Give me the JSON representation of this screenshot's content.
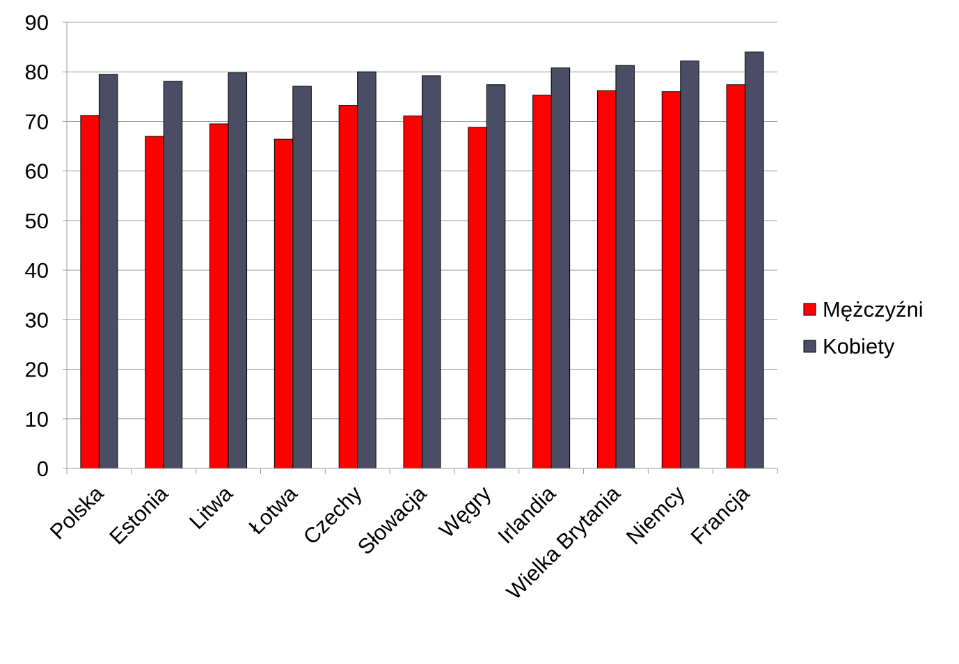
{
  "chart_data": {
    "type": "bar",
    "title": "",
    "xlabel": "",
    "ylabel": "",
    "ylim": [
      0,
      90
    ],
    "yticks": [
      0,
      10,
      20,
      30,
      40,
      50,
      60,
      70,
      80,
      90
    ],
    "grid": true,
    "legend_position": "right",
    "categories": [
      "Polska",
      "Estonia",
      "Litwa",
      "Łotwa",
      "Czechy",
      "Słowacja",
      "Węgry",
      "Irlandia",
      "Wielka Brytania",
      "Niemcy",
      "Francja"
    ],
    "series": [
      {
        "name": "Mężczyźni",
        "color": "#ff0000",
        "values": [
          71.2,
          67.0,
          69.5,
          66.4,
          73.2,
          71.1,
          68.8,
          75.3,
          76.2,
          76.0,
          77.4
        ]
      },
      {
        "name": "Kobiety",
        "color": "#4a4d63",
        "values": [
          79.5,
          78.1,
          79.8,
          77.1,
          80.0,
          79.2,
          77.4,
          80.8,
          81.3,
          82.2,
          84.0
        ]
      }
    ]
  }
}
